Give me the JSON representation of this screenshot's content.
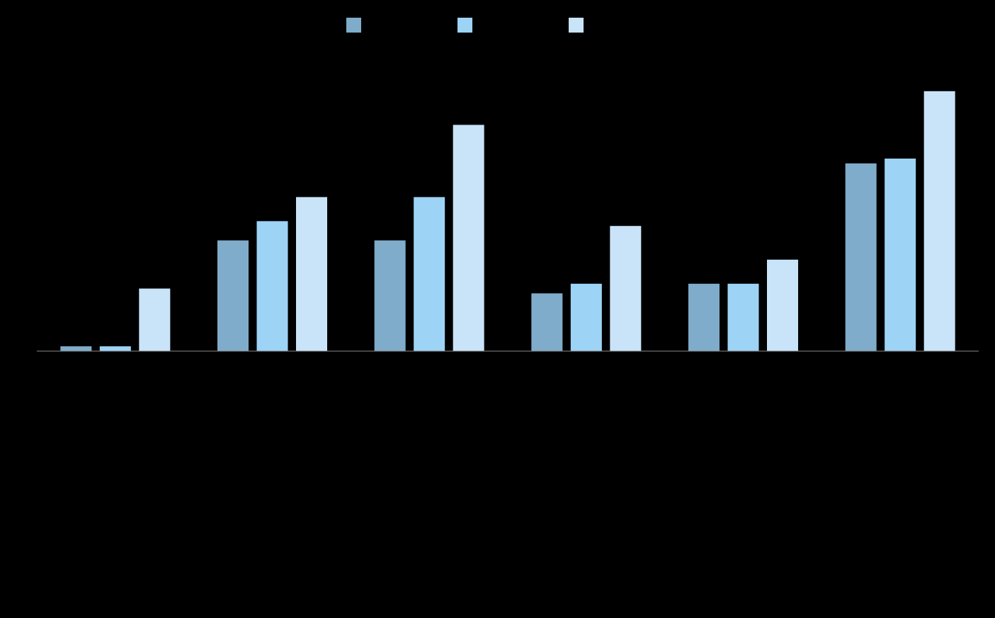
{
  "chart_data": {
    "type": "bar",
    "categories": [
      null,
      null,
      null,
      null,
      null,
      null
    ],
    "series": [
      {
        "color": "#7facca",
        "values": [
          1,
          23,
          23,
          12,
          14,
          39
        ]
      },
      {
        "color": "#9dd3f5",
        "values": [
          1,
          27,
          32,
          14,
          14,
          40
        ]
      },
      {
        "color": "#c9e4f9",
        "values": [
          13,
          32,
          47,
          26,
          19,
          54
        ]
      }
    ],
    "ylim": [
      0,
      60
    ]
  }
}
